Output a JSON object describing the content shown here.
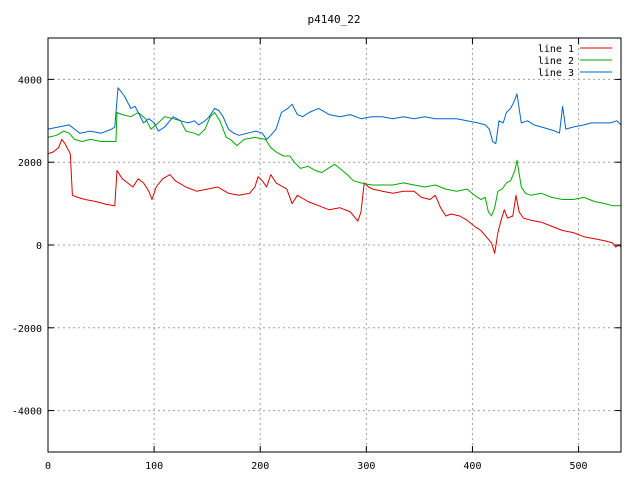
{
  "chart_data": {
    "type": "line",
    "title": "p4140_22",
    "xlabel": "",
    "ylabel": "",
    "xlim": [
      0,
      540
    ],
    "ylim": [
      -5000,
      5000
    ],
    "x_ticks": [
      0,
      100,
      200,
      300,
      400,
      500
    ],
    "y_ticks": [
      -4000,
      -2000,
      0,
      2000,
      4000
    ],
    "grid": true,
    "legend_position": "top-right",
    "series": [
      {
        "name": "line 1",
        "color": "#dd0000",
        "points": [
          [
            0,
            2200
          ],
          [
            5,
            2250
          ],
          [
            10,
            2350
          ],
          [
            13,
            2550
          ],
          [
            16,
            2450
          ],
          [
            19,
            2300
          ],
          [
            21,
            2200
          ],
          [
            23,
            1200
          ],
          [
            28,
            1150
          ],
          [
            35,
            1100
          ],
          [
            45,
            1050
          ],
          [
            55,
            980
          ],
          [
            63,
            950
          ],
          [
            65,
            1800
          ],
          [
            70,
            1600
          ],
          [
            75,
            1500
          ],
          [
            80,
            1400
          ],
          [
            85,
            1600
          ],
          [
            90,
            1500
          ],
          [
            95,
            1300
          ],
          [
            98,
            1100
          ],
          [
            102,
            1400
          ],
          [
            108,
            1600
          ],
          [
            115,
            1700
          ],
          [
            120,
            1550
          ],
          [
            130,
            1400
          ],
          [
            140,
            1300
          ],
          [
            150,
            1350
          ],
          [
            160,
            1400
          ],
          [
            170,
            1250
          ],
          [
            180,
            1200
          ],
          [
            190,
            1250
          ],
          [
            195,
            1400
          ],
          [
            198,
            1650
          ],
          [
            202,
            1550
          ],
          [
            206,
            1400
          ],
          [
            210,
            1700
          ],
          [
            215,
            1500
          ],
          [
            225,
            1350
          ],
          [
            230,
            1000
          ],
          [
            235,
            1200
          ],
          [
            245,
            1050
          ],
          [
            255,
            950
          ],
          [
            265,
            850
          ],
          [
            275,
            900
          ],
          [
            285,
            800
          ],
          [
            292,
            580
          ],
          [
            295,
            800
          ],
          [
            298,
            1500
          ],
          [
            302,
            1400
          ],
          [
            306,
            1350
          ],
          [
            315,
            1300
          ],
          [
            325,
            1250
          ],
          [
            335,
            1300
          ],
          [
            345,
            1300
          ],
          [
            352,
            1150
          ],
          [
            360,
            1100
          ],
          [
            365,
            1200
          ],
          [
            370,
            900
          ],
          [
            375,
            700
          ],
          [
            380,
            750
          ],
          [
            388,
            700
          ],
          [
            395,
            600
          ],
          [
            402,
            450
          ],
          [
            408,
            350
          ],
          [
            413,
            200
          ],
          [
            418,
            50
          ],
          [
            421,
            -200
          ],
          [
            424,
            300
          ],
          [
            427,
            600
          ],
          [
            430,
            850
          ],
          [
            433,
            650
          ],
          [
            438,
            700
          ],
          [
            441,
            1200
          ],
          [
            444,
            800
          ],
          [
            448,
            650
          ],
          [
            455,
            600
          ],
          [
            465,
            550
          ],
          [
            475,
            450
          ],
          [
            485,
            350
          ],
          [
            495,
            300
          ],
          [
            505,
            200
          ],
          [
            515,
            150
          ],
          [
            525,
            100
          ],
          [
            532,
            50
          ],
          [
            535,
            -50
          ],
          [
            538,
            0
          ],
          [
            540,
            -50
          ]
        ]
      },
      {
        "name": "line 2",
        "color": "#00aa00",
        "points": [
          [
            0,
            2600
          ],
          [
            8,
            2650
          ],
          [
            15,
            2750
          ],
          [
            20,
            2700
          ],
          [
            25,
            2550
          ],
          [
            32,
            2500
          ],
          [
            40,
            2550
          ],
          [
            50,
            2500
          ],
          [
            60,
            2500
          ],
          [
            64,
            2500
          ],
          [
            65,
            3200
          ],
          [
            70,
            3150
          ],
          [
            78,
            3100
          ],
          [
            85,
            3200
          ],
          [
            92,
            3050
          ],
          [
            97,
            2800
          ],
          [
            102,
            2900
          ],
          [
            110,
            3100
          ],
          [
            118,
            3050
          ],
          [
            125,
            3000
          ],
          [
            130,
            2750
          ],
          [
            138,
            2700
          ],
          [
            142,
            2650
          ],
          [
            148,
            2800
          ],
          [
            153,
            3100
          ],
          [
            157,
            3200
          ],
          [
            162,
            3000
          ],
          [
            168,
            2600
          ],
          [
            172,
            2550
          ],
          [
            178,
            2400
          ],
          [
            185,
            2550
          ],
          [
            195,
            2600
          ],
          [
            205,
            2550
          ],
          [
            210,
            2350
          ],
          [
            215,
            2250
          ],
          [
            222,
            2150
          ],
          [
            228,
            2150
          ],
          [
            232,
            2000
          ],
          [
            238,
            1850
          ],
          [
            245,
            1900
          ],
          [
            252,
            1800
          ],
          [
            258,
            1750
          ],
          [
            264,
            1850
          ],
          [
            270,
            1950
          ],
          [
            275,
            1850
          ],
          [
            282,
            1700
          ],
          [
            288,
            1550
          ],
          [
            295,
            1500
          ],
          [
            305,
            1450
          ],
          [
            315,
            1450
          ],
          [
            325,
            1450
          ],
          [
            335,
            1500
          ],
          [
            345,
            1450
          ],
          [
            355,
            1400
          ],
          [
            365,
            1450
          ],
          [
            375,
            1350
          ],
          [
            385,
            1300
          ],
          [
            395,
            1350
          ],
          [
            402,
            1200
          ],
          [
            408,
            1100
          ],
          [
            412,
            1150
          ],
          [
            415,
            800
          ],
          [
            418,
            700
          ],
          [
            421,
            900
          ],
          [
            424,
            1300
          ],
          [
            428,
            1350
          ],
          [
            432,
            1500
          ],
          [
            436,
            1550
          ],
          [
            440,
            1800
          ],
          [
            442,
            2050
          ],
          [
            446,
            1400
          ],
          [
            450,
            1250
          ],
          [
            455,
            1200
          ],
          [
            465,
            1250
          ],
          [
            475,
            1150
          ],
          [
            485,
            1100
          ],
          [
            495,
            1100
          ],
          [
            505,
            1150
          ],
          [
            515,
            1050
          ],
          [
            525,
            1000
          ],
          [
            532,
            950
          ],
          [
            540,
            950
          ]
        ]
      },
      {
        "name": "line 3",
        "color": "#0066cc",
        "points": [
          [
            0,
            2800
          ],
          [
            10,
            2850
          ],
          [
            20,
            2900
          ],
          [
            25,
            2800
          ],
          [
            30,
            2700
          ],
          [
            40,
            2750
          ],
          [
            50,
            2700
          ],
          [
            60,
            2800
          ],
          [
            63,
            2850
          ],
          [
            66,
            3800
          ],
          [
            72,
            3600
          ],
          [
            78,
            3300
          ],
          [
            82,
            3350
          ],
          [
            86,
            3150
          ],
          [
            90,
            2950
          ],
          [
            95,
            3050
          ],
          [
            100,
            2950
          ],
          [
            104,
            2750
          ],
          [
            110,
            2850
          ],
          [
            118,
            3100
          ],
          [
            125,
            3000
          ],
          [
            132,
            2950
          ],
          [
            138,
            3000
          ],
          [
            142,
            2900
          ],
          [
            148,
            3000
          ],
          [
            152,
            3100
          ],
          [
            157,
            3300
          ],
          [
            161,
            3250
          ],
          [
            165,
            3100
          ],
          [
            170,
            2800
          ],
          [
            175,
            2700
          ],
          [
            180,
            2650
          ],
          [
            188,
            2700
          ],
          [
            196,
            2750
          ],
          [
            202,
            2700
          ],
          [
            206,
            2550
          ],
          [
            210,
            2650
          ],
          [
            215,
            2800
          ],
          [
            220,
            3200
          ],
          [
            226,
            3300
          ],
          [
            230,
            3400
          ],
          [
            235,
            3150
          ],
          [
            240,
            3100
          ],
          [
            246,
            3200
          ],
          [
            255,
            3300
          ],
          [
            265,
            3150
          ],
          [
            275,
            3100
          ],
          [
            285,
            3150
          ],
          [
            295,
            3050
          ],
          [
            305,
            3100
          ],
          [
            315,
            3100
          ],
          [
            325,
            3050
          ],
          [
            335,
            3100
          ],
          [
            345,
            3050
          ],
          [
            355,
            3100
          ],
          [
            365,
            3050
          ],
          [
            375,
            3050
          ],
          [
            385,
            3050
          ],
          [
            395,
            3000
          ],
          [
            405,
            2950
          ],
          [
            412,
            2900
          ],
          [
            416,
            2800
          ],
          [
            419,
            2500
          ],
          [
            422,
            2450
          ],
          [
            425,
            3000
          ],
          [
            429,
            2950
          ],
          [
            432,
            3200
          ],
          [
            436,
            3300
          ],
          [
            439,
            3450
          ],
          [
            442,
            3650
          ],
          [
            446,
            2950
          ],
          [
            452,
            3000
          ],
          [
            458,
            2900
          ],
          [
            465,
            2850
          ],
          [
            472,
            2800
          ],
          [
            478,
            2750
          ],
          [
            482,
            2700
          ],
          [
            485,
            3350
          ],
          [
            488,
            2800
          ],
          [
            495,
            2850
          ],
          [
            505,
            2900
          ],
          [
            512,
            2950
          ],
          [
            520,
            2950
          ],
          [
            530,
            2950
          ],
          [
            536,
            3000
          ],
          [
            540,
            2900
          ]
        ]
      }
    ]
  }
}
